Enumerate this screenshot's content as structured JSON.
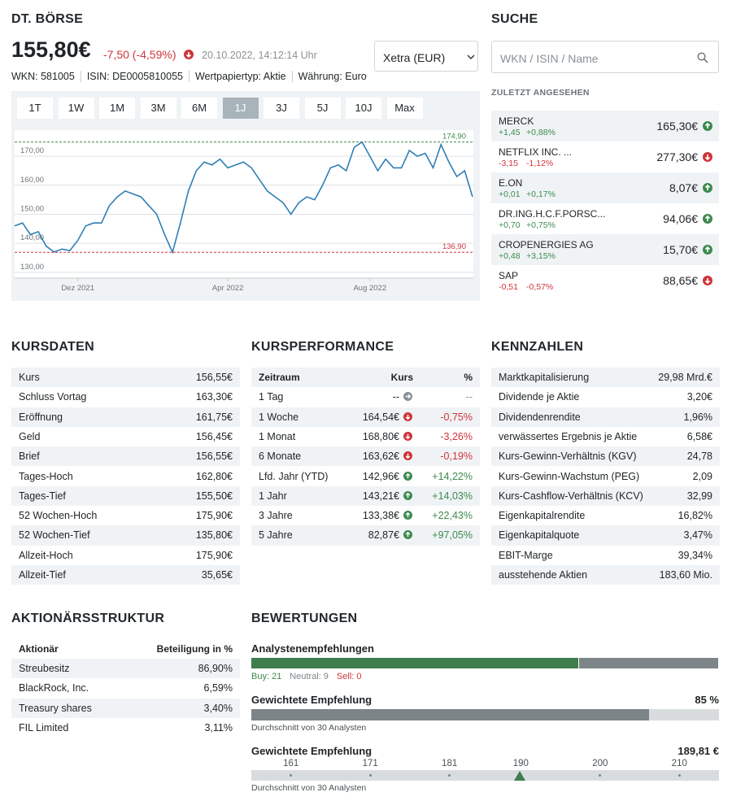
{
  "header": {
    "title": "DT. BÖRSE",
    "price": "155,80€",
    "change": "-7,50 (-4,59%)",
    "trend": "down",
    "datetime": "20.10.2022, 14:12:14 Uhr",
    "meta": [
      "WKN: 581005",
      "ISIN: DE0005810055",
      "Wertpapiertyp: Aktie",
      "Währung: Euro"
    ],
    "exchange": "Xetra (EUR)"
  },
  "ranges": {
    "buttons": [
      "1T",
      "1W",
      "1M",
      "3M",
      "6M",
      "1J",
      "3J",
      "5J",
      "10J",
      "Max"
    ],
    "active": 5
  },
  "chart_data": {
    "type": "line",
    "color": "#2f7fb5",
    "grid": true,
    "categories": [
      null,
      null,
      null,
      null,
      null,
      null,
      null,
      null,
      "Dez 2021",
      null,
      null,
      null,
      null,
      null,
      null,
      null,
      null,
      null,
      null,
      null,
      null,
      null,
      null,
      null,
      null,
      null,
      null,
      "Apr 2022",
      null,
      null,
      null,
      null,
      null,
      null,
      null,
      null,
      null,
      null,
      null,
      null,
      null,
      null,
      null,
      null,
      null,
      "Aug 2022",
      null,
      null,
      null,
      null,
      null,
      null,
      null,
      null,
      null,
      null,
      null,
      null,
      null
    ],
    "values": [
      146,
      147,
      143,
      144,
      139,
      137,
      138,
      137.5,
      141,
      146,
      147,
      147,
      153,
      156,
      158,
      157,
      156,
      153,
      150,
      143,
      136.9,
      147,
      158,
      165,
      168,
      167,
      169,
      166,
      167,
      168,
      166,
      162,
      158,
      156,
      154,
      150,
      154,
      156,
      155,
      160,
      166,
      167,
      165,
      173,
      174.9,
      170,
      165,
      169,
      166,
      166,
      172,
      170,
      171,
      166,
      174,
      168,
      163,
      165,
      156
    ],
    "ylim": [
      128,
      179
    ],
    "yticks": [
      {
        "value": 130,
        "label": "130,00"
      },
      {
        "value": 140,
        "label": "140,00"
      },
      {
        "value": 150,
        "label": "150,00"
      },
      {
        "value": 160,
        "label": "160,00"
      },
      {
        "value": 170,
        "label": "170,00"
      }
    ],
    "annotations": [
      {
        "value": 174.9,
        "label": "174,90",
        "color": "#3c8a4e"
      },
      {
        "value": 136.9,
        "label": "136,90",
        "color": "#d0343a"
      }
    ]
  },
  "search": {
    "title": "SUCHE",
    "placeholder": "WKN / ISIN / Name",
    "recent_title": "ZULETZT ANGESEHEN",
    "items": [
      {
        "name": "MERCK",
        "change": "+1,45",
        "pct": "+0,88%",
        "price": "165,30€",
        "trend": "up"
      },
      {
        "name": "NETFLIX INC. ...",
        "change": "-3,15",
        "pct": "-1,12%",
        "price": "277,30€",
        "trend": "down"
      },
      {
        "name": "E.ON",
        "change": "+0,01",
        "pct": "+0,17%",
        "price": "8,07€",
        "trend": "up"
      },
      {
        "name": "DR.ING.H.C.F.PORSC...",
        "change": "+0,70",
        "pct": "+0,75%",
        "price": "94,06€",
        "trend": "up"
      },
      {
        "name": "CROPENERGIES AG",
        "change": "+0,48",
        "pct": "+3,15%",
        "price": "15,70€",
        "trend": "up"
      },
      {
        "name": "SAP",
        "change": "-0,51",
        "pct": "-0,57%",
        "price": "88,65€",
        "trend": "down"
      }
    ]
  },
  "kursdaten": {
    "title": "KURSDATEN",
    "rows": [
      [
        "Kurs",
        "156,55€"
      ],
      [
        "Schluss Vortag",
        "163,30€"
      ],
      [
        "Eröffnung",
        "161,75€"
      ],
      [
        "Geld",
        "156,45€"
      ],
      [
        "Brief",
        "156,55€"
      ],
      [
        "Tages-Hoch",
        "162,80€"
      ],
      [
        "Tages-Tief",
        "155,50€"
      ],
      [
        "52 Wochen-Hoch",
        "175,90€"
      ],
      [
        "52 Wochen-Tief",
        "135,80€"
      ],
      [
        "Allzeit-Hoch",
        "175,90€"
      ],
      [
        "Allzeit-Tief",
        "35,65€"
      ]
    ]
  },
  "performance": {
    "title": "KURSPERFORMANCE",
    "columns": [
      "Zeitraum",
      "Kurs",
      "%"
    ],
    "rows": [
      {
        "period": "1 Tag",
        "kurs": "--",
        "pct": "--",
        "trend": "flat"
      },
      {
        "period": "1 Woche",
        "kurs": "164,54€",
        "pct": "-0,75%",
        "trend": "down"
      },
      {
        "period": "1 Monat",
        "kurs": "168,80€",
        "pct": "-3,26%",
        "trend": "down"
      },
      {
        "period": "6 Monate",
        "kurs": "163,62€",
        "pct": "-0,19%",
        "trend": "down"
      },
      {
        "period": "Lfd. Jahr (YTD)",
        "kurs": "142,96€",
        "pct": "+14,22%",
        "trend": "up"
      },
      {
        "period": "1 Jahr",
        "kurs": "143,21€",
        "pct": "+14,03%",
        "trend": "up"
      },
      {
        "period": "3 Jahre",
        "kurs": "133,38€",
        "pct": "+22,43%",
        "trend": "up"
      },
      {
        "period": "5 Jahre",
        "kurs": "82,87€",
        "pct": "+97,05%",
        "trend": "up"
      }
    ]
  },
  "kennzahlen": {
    "title": "KENNZAHLEN",
    "rows": [
      [
        "Marktkapitalisierung",
        "29,98 Mrd.€"
      ],
      [
        "Dividende je Aktie",
        "3,20€"
      ],
      [
        "Dividendenrendite",
        "1,96%"
      ],
      [
        "verwässertes Ergebnis je Aktie",
        "6,58€"
      ],
      [
        "Kurs-Gewinn-Verhältnis (KGV)",
        "24,78"
      ],
      [
        "Kurs-Gewinn-Wachstum (PEG)",
        "2,09"
      ],
      [
        "Kurs-Cashflow-Verhältnis (KCV)",
        "32,99"
      ],
      [
        "Eigenkapitalrendite",
        "16,82%"
      ],
      [
        "Eigenkapitalquote",
        "3,47%"
      ],
      [
        "EBIT-Marge",
        "39,34%"
      ],
      [
        "ausstehende Aktien",
        "183,60 Mio."
      ]
    ]
  },
  "aktionaere": {
    "title": "AKTIONÄRSSTRUKTUR",
    "columns": [
      "Aktionär",
      "Beteiligung in %"
    ],
    "rows": [
      [
        "Streubesitz",
        "86,90%"
      ],
      [
        "BlackRock, Inc.",
        "6,59%"
      ],
      [
        "Treasury shares",
        "3,40%"
      ],
      [
        "FIL Limited",
        "3,11%"
      ]
    ]
  },
  "bewertungen": {
    "title": "BEWERTUNGEN",
    "analysts": {
      "title": "Analystenempfehlungen",
      "counts": [
        {
          "label": "Buy:",
          "value": 21,
          "color": "#3f7d4f",
          "text_color": "#3c8a4e"
        },
        {
          "label": "Neutral:",
          "value": 9,
          "color": "#7d8588",
          "text_color": "#7d8588"
        },
        {
          "label": "Sell:",
          "value": 0,
          "color": "#d0343a",
          "text_color": "#d0343a"
        }
      ]
    },
    "weighted": {
      "title": "Gewichtete Empfehlung",
      "value": 85,
      "value_label": "85 %",
      "xlim": [
        0,
        100
      ],
      "note": "Durchschnitt von 30 Analysten"
    },
    "target": {
      "title": "Gewichtete Empfehlung",
      "value": 189.81,
      "value_label": "189,81 €",
      "xlim": [
        156,
        215
      ],
      "xticks": [
        161,
        171,
        181,
        190,
        200,
        210
      ],
      "note": "Durchschnitt von 30 Analysten"
    }
  }
}
